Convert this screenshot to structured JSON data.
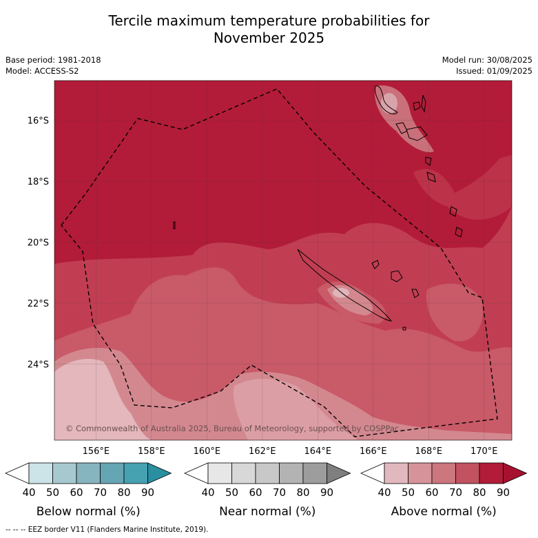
{
  "title_line1": "Tercile maximum temperature probabilities for",
  "title_line2": "November 2025",
  "base_period": "Base period: 1981-2018",
  "model": "Model: ACCESS-S2",
  "model_run": "Model run: 30/08/2025",
  "issued": "Issued: 01/09/2025",
  "copyright": "© Commonwealth of Australia 2025, Bureau of Meteorology, supported by COSPPac",
  "lat_labels": [
    "16°S",
    "18°S",
    "20°S",
    "22°S",
    "24°S"
  ],
  "lon_labels": [
    "156°E",
    "158°E",
    "160°E",
    "162°E",
    "164°E",
    "166°E",
    "168°E",
    "170°E"
  ],
  "legends": [
    {
      "label": "Below normal (%)",
      "ticks": [
        "40",
        "50",
        "60",
        "70",
        "80",
        "90"
      ],
      "colors": [
        "#ffffff",
        "#cce3e8",
        "#a6c9cf",
        "#86b4bf",
        "#66a5b3",
        "#46a1b1",
        "#2a8fa0"
      ]
    },
    {
      "label": "Near normal (%)",
      "ticks": [
        "40",
        "50",
        "60",
        "70",
        "80",
        "90"
      ],
      "colors": [
        "#ffffff",
        "#e7e7e7",
        "#d8d8d8",
        "#c8c8c8",
        "#b3b3b3",
        "#9d9d9d",
        "#7f7f7f"
      ]
    },
    {
      "label": "Above normal (%)",
      "ticks": [
        "40",
        "50",
        "60",
        "70",
        "80",
        "90"
      ],
      "colors": [
        "#ffffff",
        "#e2b8bf",
        "#d69399",
        "#cc767e",
        "#c2525f",
        "#b21c38",
        "#a5112f"
      ]
    }
  ],
  "footer": "--  --  -- EEZ border V11 (Flanders Marine Institute, 2019).",
  "colors": {
    "ocean_90": "#b21c38",
    "band_80": "#c13e52",
    "band_70": "#c95a68",
    "band_60": "#d3888f",
    "band_50": "#e3b7bc"
  }
}
